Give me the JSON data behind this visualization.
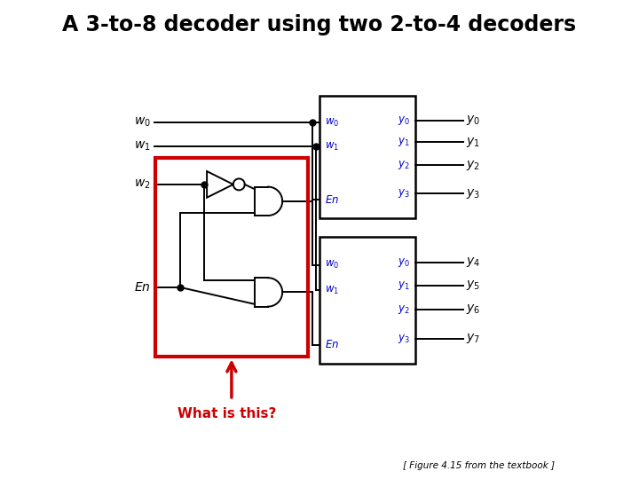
{
  "title": "A 3-to-8 decoder using two 2-to-4 decoders",
  "title_fontsize": 17,
  "title_color": "#000000",
  "background_color": "#ffffff",
  "fig_width": 7.2,
  "fig_height": 5.4,
  "footer": "[ Figure 4.15 from the textbook ]",
  "what_is_this": "What is this?",
  "black": "#000000",
  "red": "#cc0000",
  "blue": "#0000cc"
}
